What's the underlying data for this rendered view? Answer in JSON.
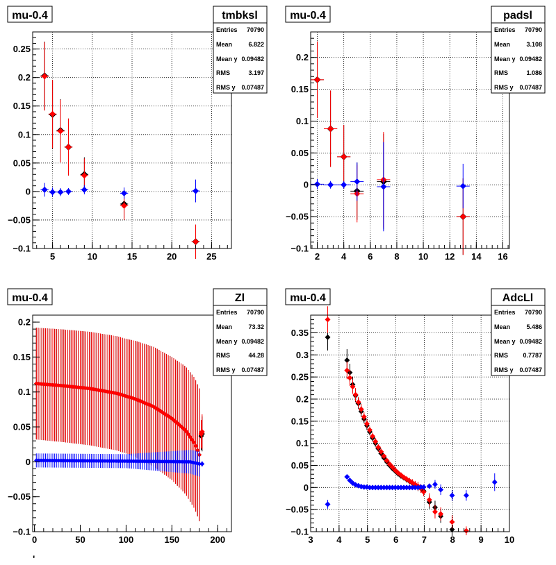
{
  "colors": {
    "red": "#ff0000",
    "black": "#000000",
    "blue": "#0000ff",
    "grid": "#000000",
    "frame": "#000000"
  },
  "stats_labels": [
    "Entries",
    "Mean",
    "Mean y",
    "RMS",
    "RMS y"
  ],
  "chart_data": [
    {
      "type": "scatter",
      "title": "mu-0.4",
      "stats": {
        "name": "tmbksl",
        "Entries": "70790",
        "Mean": "6.822",
        "Mean y": "0.09482",
        "RMS": "3.197",
        "RMS y": "0.07487"
      },
      "xlim": [
        2.5,
        27.5
      ],
      "ylim": [
        -0.1,
        0.28
      ],
      "xticks": [
        5,
        10,
        15,
        20,
        25
      ],
      "yticks": [
        -0.1,
        -0.05,
        0,
        0.05,
        0.1,
        0.15,
        0.2,
        0.25
      ],
      "ytick_labels": [
        "−0.1",
        "−0.05",
        "0",
        "0.05",
        "0.1",
        "0.15",
        "0.2",
        "0.25"
      ],
      "grid": true,
      "series": [
        {
          "color": "black",
          "marker_size": 5,
          "xerr": 0.5,
          "x": [
            4,
            5,
            6,
            7,
            9,
            14,
            23
          ],
          "y": [
            0.203,
            0.135,
            0.107,
            0.078,
            0.03,
            -0.022,
            -0.088
          ],
          "yerr": [
            0.06,
            0.06,
            0.055,
            0.05,
            0.03,
            0.025,
            0.03
          ]
        },
        {
          "color": "red",
          "marker_size": 4.5,
          "xerr": 0.5,
          "x": [
            4,
            5,
            6,
            7,
            9,
            14,
            23
          ],
          "y": [
            0.202,
            0.136,
            0.106,
            0.078,
            0.028,
            -0.025,
            -0.088
          ],
          "yerr": [
            0.06,
            0.06,
            0.055,
            0.05,
            0.03,
            0.025,
            0.03
          ]
        },
        {
          "color": "blue",
          "marker_size": 4.5,
          "xerr": 0.5,
          "x": [
            4,
            5,
            6,
            7,
            9,
            14,
            23
          ],
          "y": [
            0.003,
            -0.001,
            -0.001,
            0.0,
            0.003,
            -0.003,
            0.001
          ],
          "yerr": [
            0.012,
            0.008,
            0.007,
            0.006,
            0.008,
            0.01,
            0.02
          ]
        }
      ]
    },
    {
      "type": "scatter",
      "title": "mu-0.4",
      "stats": {
        "name": "padsl",
        "Entries": "70790",
        "Mean": "3.108",
        "Mean y": "0.09482",
        "RMS": "1.086",
        "RMS y": "0.07487"
      },
      "xlim": [
        1.5,
        16.5
      ],
      "ylim": [
        -0.1,
        0.24
      ],
      "xticks": [
        2,
        4,
        6,
        8,
        10,
        12,
        14,
        16
      ],
      "yticks": [
        -0.1,
        -0.05,
        0,
        0.05,
        0.1,
        0.15,
        0.2
      ],
      "ytick_labels": [
        "−0.1",
        "−0.05",
        "0",
        "0.05",
        "0.1",
        "0.15",
        "0.2"
      ],
      "grid": true,
      "series": [
        {
          "color": "black",
          "marker_size": 5,
          "xerr": 0.5,
          "x": [
            2,
            3,
            4,
            5,
            7,
            13
          ],
          "y": [
            0.165,
            0.088,
            0.044,
            -0.01,
            0.005,
            -0.05
          ],
          "yerr": [
            0.06,
            0.06,
            0.05,
            0.045,
            0.075,
            0.06
          ]
        },
        {
          "color": "red",
          "marker_size": 4.5,
          "xerr": 0.5,
          "x": [
            2,
            3,
            4,
            5,
            7,
            13
          ],
          "y": [
            0.165,
            0.088,
            0.044,
            -0.014,
            0.008,
            -0.05
          ],
          "yerr": [
            0.06,
            0.06,
            0.05,
            0.045,
            0.075,
            0.06
          ]
        },
        {
          "color": "blue",
          "marker_size": 4.5,
          "xerr": 0.5,
          "x": [
            2,
            3,
            4,
            5,
            7,
            13
          ],
          "y": [
            0.001,
            0.0,
            0.0,
            0.005,
            -0.003,
            -0.002
          ],
          "yerr": [
            0.008,
            0.006,
            0.006,
            0.03,
            0.07,
            0.035
          ]
        }
      ]
    },
    {
      "type": "scatter",
      "title": "mu-0.4",
      "stats": {
        "name": "Zl",
        "Entries": "70790",
        "Mean": "73.32",
        "Mean y": "0.09482",
        "RMS": "44.28",
        "RMS y": "0.07487"
      },
      "xlim": [
        -2,
        215
      ],
      "ylim": [
        -0.1,
        0.21
      ],
      "xticks": [
        0,
        50,
        100,
        150,
        200
      ],
      "yticks": [
        -0.1,
        -0.05,
        0,
        0.05,
        0.1,
        0.15,
        0.2
      ],
      "ytick_labels": [
        "−0.1",
        "−0.05",
        "0",
        "0.05",
        "0.1",
        "0.15",
        "0.2"
      ],
      "grid": false,
      "dense": [
        {
          "color": "black",
          "marker_size": 3.2,
          "x_start": 2,
          "x_end": 180,
          "step": 2,
          "knots_x": [
            2,
            30,
            60,
            90,
            110,
            130,
            150,
            165,
            175,
            180
          ],
          "knots_y": [
            0.112,
            0.109,
            0.105,
            0.098,
            0.09,
            0.079,
            0.062,
            0.045,
            0.026,
            0.01
          ],
          "err_knots_x": [
            2,
            100,
            150,
            180
          ],
          "err_knots_y": [
            0.08,
            0.082,
            0.088,
            0.095
          ]
        },
        {
          "color": "red",
          "marker_size": 3.2,
          "x_start": 2,
          "x_end": 180,
          "step": 2,
          "knots_x": [
            2,
            30,
            60,
            90,
            110,
            130,
            150,
            165,
            175,
            180
          ],
          "knots_y": [
            0.112,
            0.109,
            0.105,
            0.098,
            0.09,
            0.079,
            0.062,
            0.045,
            0.026,
            0.01
          ],
          "err_knots_x": [
            2,
            100,
            150,
            180
          ],
          "err_knots_y": [
            0.08,
            0.082,
            0.088,
            0.095
          ]
        },
        {
          "color": "blue",
          "marker_size": 3.2,
          "x_start": 2,
          "x_end": 180,
          "step": 2,
          "knots_x": [
            2,
            100,
            170,
            180
          ],
          "knots_y": [
            0.002,
            0.001,
            0.0,
            -0.003
          ],
          "err_knots_x": [
            2,
            100,
            180
          ],
          "err_knots_y": [
            0.01,
            0.01,
            0.018
          ]
        }
      ],
      "series": [
        {
          "color": "black",
          "marker_size": 4,
          "xerr": 0.8,
          "x": [
            182,
            183
          ],
          "y": [
            0.037,
            0.04
          ],
          "yerr": [
            0.02,
            0.025
          ]
        },
        {
          "color": "red",
          "marker_size": 4,
          "xerr": 0.8,
          "x": [
            182,
            183
          ],
          "y": [
            0.04,
            0.043
          ],
          "yerr": [
            0.02,
            0.025
          ]
        },
        {
          "color": "blue",
          "marker_size": 3.5,
          "xerr": 0.8,
          "x": [
            183
          ],
          "y": [
            -0.003
          ],
          "yerr": [
            0.004
          ]
        }
      ]
    },
    {
      "type": "scatter",
      "title": "mu-0.4",
      "stats": {
        "name": "AdcLl",
        "Entries": "70790",
        "Mean": "5.486",
        "Mean y": "0.09482",
        "RMS": "0.7787",
        "RMS y": "0.07487"
      },
      "xlim": [
        3,
        10
      ],
      "ylim": [
        -0.1,
        0.39
      ],
      "xticks": [
        3,
        4,
        5,
        6,
        7,
        8,
        9,
        10
      ],
      "yticks": [
        -0.1,
        -0.05,
        0,
        0.05,
        0.1,
        0.15,
        0.2,
        0.25,
        0.3,
        0.35
      ],
      "ytick_labels": [
        "−0.1",
        "−0.05",
        "0",
        "0.05",
        "0.1",
        "0.15",
        "0.2",
        "0.25",
        "0.3",
        "0.35"
      ],
      "grid": true,
      "series": [
        {
          "color": "black",
          "marker_size": 4,
          "xerr": 0.03,
          "x": [
            3.6,
            4.28,
            4.38,
            4.48,
            4.58,
            4.68,
            4.78,
            4.88,
            4.98,
            5.08,
            5.18,
            5.28,
            5.38,
            5.48,
            5.58,
            5.68,
            5.78,
            5.88,
            5.98,
            6.08,
            6.18,
            6.28,
            6.38,
            6.48,
            6.58,
            6.68,
            6.78,
            6.88,
            6.98,
            7.18,
            7.38,
            7.58,
            7.98
          ],
          "y": [
            0.34,
            0.288,
            0.26,
            0.233,
            0.208,
            0.19,
            0.172,
            0.155,
            0.14,
            0.126,
            0.112,
            0.1,
            0.088,
            0.077,
            0.067,
            0.058,
            0.05,
            0.043,
            0.037,
            0.031,
            0.026,
            0.022,
            0.018,
            0.014,
            0.01,
            0.006,
            0.002,
            -0.002,
            -0.008,
            -0.033,
            -0.045,
            -0.065,
            -0.095
          ],
          "yerr": [
            0.03,
            0.025,
            0.02,
            0.018,
            0.015,
            0.012,
            0.012,
            0.01,
            0.01,
            0.008,
            0.008,
            0.008,
            0.007,
            0.007,
            0.006,
            0.006,
            0.006,
            0.006,
            0.006,
            0.006,
            0.006,
            0.006,
            0.007,
            0.007,
            0.008,
            0.008,
            0.01,
            0.01,
            0.01,
            0.015,
            0.015,
            0.015,
            0.015
          ]
        },
        {
          "color": "red",
          "marker_size": 4,
          "xerr": 0.03,
          "x": [
            3.6,
            4.28,
            4.38,
            4.48,
            4.58,
            4.68,
            4.78,
            4.88,
            4.98,
            5.08,
            5.18,
            5.28,
            5.38,
            5.48,
            5.58,
            5.68,
            5.78,
            5.88,
            5.98,
            6.08,
            6.18,
            6.28,
            6.38,
            6.48,
            6.58,
            6.68,
            6.78,
            6.88,
            6.98,
            7.18,
            7.38,
            7.58,
            7.98,
            8.48
          ],
          "y": [
            0.38,
            0.265,
            0.248,
            0.228,
            0.21,
            0.193,
            0.177,
            0.16,
            0.144,
            0.13,
            0.116,
            0.104,
            0.091,
            0.081,
            0.071,
            0.061,
            0.053,
            0.046,
            0.039,
            0.033,
            0.028,
            0.023,
            0.019,
            0.015,
            0.011,
            0.007,
            0.003,
            -0.002,
            -0.01,
            -0.028,
            -0.055,
            -0.06,
            -0.078,
            -0.098
          ],
          "yerr": [
            0.03,
            0.02,
            0.018,
            0.016,
            0.015,
            0.012,
            0.012,
            0.01,
            0.01,
            0.008,
            0.008,
            0.008,
            0.007,
            0.007,
            0.006,
            0.006,
            0.006,
            0.006,
            0.006,
            0.006,
            0.006,
            0.006,
            0.007,
            0.007,
            0.008,
            0.008,
            0.01,
            0.01,
            0.01,
            0.015,
            0.015,
            0.015,
            0.015,
            0.01
          ]
        },
        {
          "color": "blue",
          "marker_size": 4,
          "xerr": 0.04,
          "x": [
            3.6,
            4.28,
            4.38,
            4.48,
            4.58,
            4.68,
            4.78,
            4.88,
            4.98,
            5.08,
            5.18,
            5.28,
            5.38,
            5.48,
            5.58,
            5.68,
            5.78,
            5.88,
            5.98,
            6.08,
            6.18,
            6.28,
            6.38,
            6.48,
            6.58,
            6.68,
            6.78,
            6.88,
            6.98,
            7.18,
            7.38,
            7.58,
            7.98,
            8.48,
            9.48
          ],
          "y": [
            -0.038,
            0.024,
            0.016,
            0.01,
            0.006,
            0.004,
            0.002,
            0.001,
            0.001,
            0.0,
            0.0,
            0.0,
            0.0,
            0.0,
            0.0,
            0.0,
            0.0,
            0.0,
            0.0,
            0.0,
            0.0,
            0.0,
            0.0,
            0.0,
            0.0,
            0.0,
            0.0,
            0.001,
            0.001,
            0.003,
            0.007,
            -0.005,
            -0.018,
            -0.018,
            0.012
          ],
          "yerr": [
            0.01,
            0.005,
            0.004,
            0.003,
            0.003,
            0.002,
            0.002,
            0.002,
            0.002,
            0.002,
            0.002,
            0.002,
            0.002,
            0.002,
            0.002,
            0.002,
            0.002,
            0.002,
            0.002,
            0.002,
            0.002,
            0.002,
            0.002,
            0.002,
            0.002,
            0.003,
            0.003,
            0.003,
            0.004,
            0.006,
            0.01,
            0.012,
            0.012,
            0.012,
            0.02
          ]
        }
      ]
    }
  ],
  "footer_mark": "'"
}
